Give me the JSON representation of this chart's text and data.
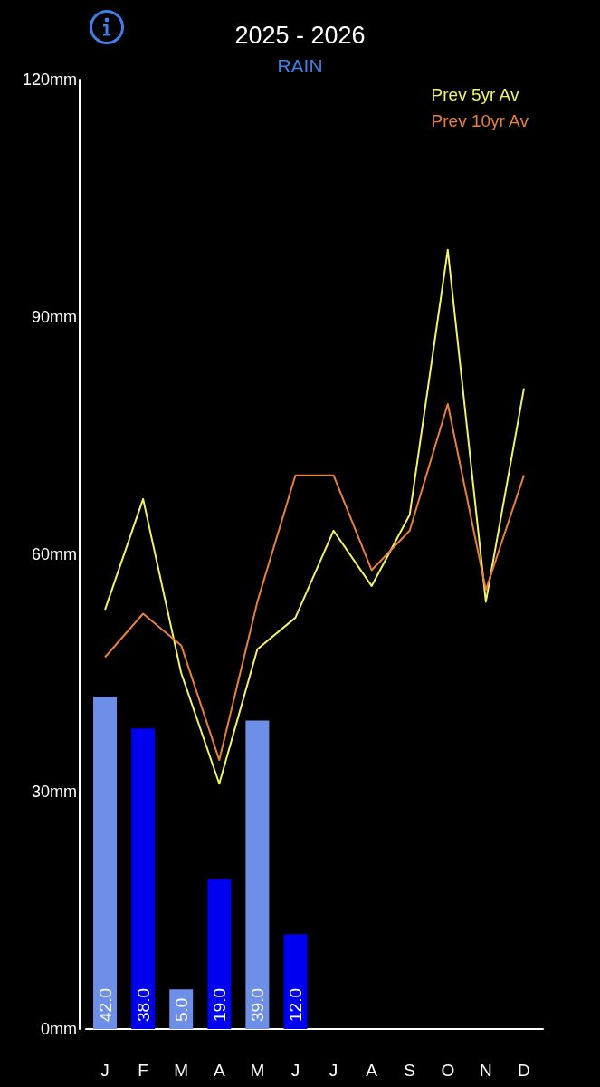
{
  "chart_data": {
    "type": "bar",
    "title": "2025 - 2026",
    "subtitle": "RAIN",
    "categories": [
      "J",
      "F",
      "M",
      "A",
      "M",
      "J",
      "J",
      "A",
      "S",
      "O",
      "N",
      "D"
    ],
    "series": [
      {
        "values": [
          42,
          38,
          5,
          19,
          39,
          12,
          null,
          null,
          null,
          null,
          null,
          null
        ],
        "colors": [
          "#6e8fe8",
          "#0000f0",
          "#6e8fe8",
          "#0000f0",
          "#6e8fe8",
          "#0000f0",
          null,
          null,
          null,
          null,
          null,
          null
        ],
        "value_labels": [
          "42.0",
          "38.0",
          "5.0",
          "19.0",
          "39.0",
          "12.0",
          null,
          null,
          null,
          null,
          null,
          null
        ]
      },
      {
        "type": "line",
        "name": "Prev 5yr Av",
        "color": "#f2f266",
        "values": [
          53,
          67,
          45,
          31,
          48,
          52,
          63,
          56,
          65,
          98.5,
          54,
          81
        ]
      },
      {
        "type": "line",
        "name": "Prev 10yr Av",
        "color": "#e8803c",
        "values": [
          47,
          52.5,
          48.5,
          34,
          54,
          70,
          70,
          58,
          63,
          79,
          55.5,
          70
        ]
      }
    ],
    "ylim": [
      0,
      120
    ],
    "yticks": [
      {
        "value": 0,
        "label": "0mm"
      },
      {
        "value": 30,
        "label": "30mm"
      },
      {
        "value": 60,
        "label": "60mm"
      },
      {
        "value": 90,
        "label": "90mm"
      },
      {
        "value": 120,
        "label": "120mm"
      }
    ],
    "legend": "top right",
    "marker": "none"
  }
}
